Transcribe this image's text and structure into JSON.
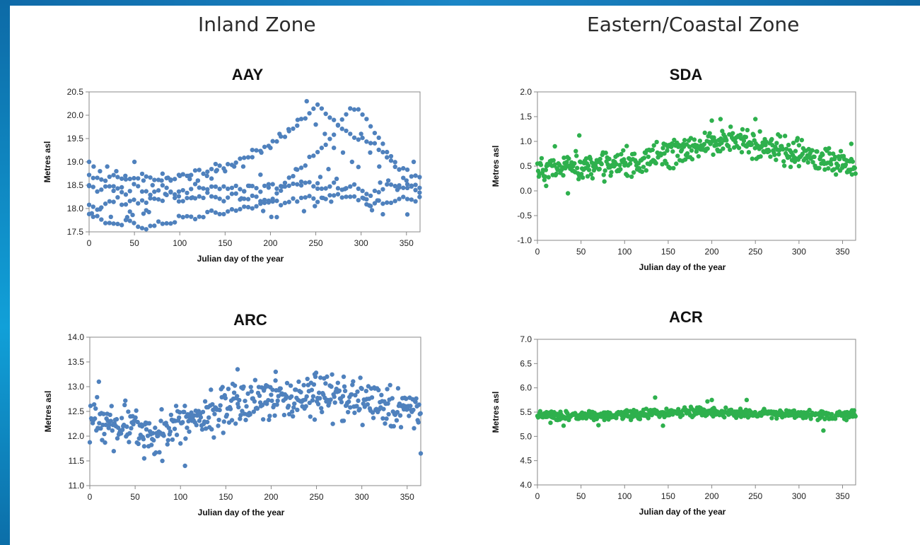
{
  "zones": {
    "inland": "Inland Zone",
    "eastern": "Eastern/Coastal Zone"
  },
  "chart_data": [
    {
      "id": "AAY",
      "type": "scatter",
      "title": "AAY",
      "xlabel": "Julian day of the year",
      "ylabel": "Metres asl",
      "xlim": [
        0,
        365
      ],
      "ylim": [
        17.5,
        20.5
      ],
      "xticks": [
        0,
        50,
        100,
        150,
        200,
        250,
        300,
        350
      ],
      "yticks": [
        "17.5",
        "18.0",
        "18.5",
        "19.0",
        "19.5",
        "20.0",
        "20.5"
      ],
      "color": "#4f81bd",
      "grid": false,
      "series": [
        {
          "x": [
            0,
            10,
            20,
            30,
            40,
            50,
            60,
            70,
            80,
            90,
            100,
            110,
            120,
            130,
            140,
            150,
            160,
            170,
            180,
            190,
            200,
            210,
            220,
            230,
            240,
            250,
            260,
            270,
            280,
            290,
            300,
            310,
            320,
            330,
            340,
            350,
            360
          ],
          "y": [
            18.5,
            18.4,
            18.5,
            18.4,
            18.3,
            18.5,
            18.4,
            18.3,
            18.5,
            18.4,
            18.3,
            18.4,
            18.5,
            18.4,
            18.5,
            18.4,
            18.5,
            18.4,
            18.5,
            18.4,
            18.5,
            18.4,
            18.5,
            18.5,
            18.6,
            18.5,
            18.4,
            18.5,
            18.4,
            18.5,
            18.4,
            18.3,
            18.4,
            18.5,
            18.4,
            18.4,
            18.5
          ]
        },
        {
          "x": [
            0,
            10,
            20,
            30,
            40,
            50,
            60,
            70,
            80,
            90,
            100,
            110,
            120,
            130,
            140,
            150,
            160,
            170,
            180,
            190,
            200,
            210,
            220,
            230,
            240,
            250,
            260,
            270,
            280,
            290,
            300,
            310,
            320,
            330,
            340,
            350,
            360
          ],
          "y": [
            18.1,
            18.0,
            18.1,
            18.2,
            18.1,
            18.2,
            18.1,
            18.2,
            18.2,
            18.3,
            18.2,
            18.2,
            18.2,
            18.3,
            18.3,
            18.2,
            18.3,
            18.2,
            18.3,
            18.2,
            18.2,
            18.1,
            18.2,
            18.2,
            18.3,
            18.2,
            18.2,
            18.3,
            18.2,
            18.3,
            18.2,
            18.1,
            18.2,
            18.1,
            18.2,
            18.2,
            18.2
          ]
        },
        {
          "x": [
            0,
            10,
            20,
            30,
            40,
            50,
            60,
            70,
            80,
            90,
            100,
            110,
            120,
            130,
            140,
            150,
            160,
            170,
            180,
            190,
            200,
            210,
            220,
            230,
            240,
            250,
            260,
            270,
            280,
            290,
            300,
            310,
            320,
            330,
            340,
            350,
            360
          ],
          "y": [
            18.7,
            18.6,
            18.6,
            18.7,
            18.6,
            18.6,
            18.7,
            18.6,
            18.7,
            18.6,
            18.7,
            18.7,
            18.8,
            18.8,
            18.9,
            18.9,
            19.0,
            19.1,
            19.2,
            19.3,
            19.4,
            19.5,
            19.6,
            19.8,
            20.0,
            20.2,
            20.1,
            19.9,
            19.7,
            19.6,
            19.5,
            19.4,
            19.3,
            19.1,
            18.9,
            18.8,
            18.7
          ]
        },
        {
          "x": [
            0,
            10,
            20,
            30,
            40,
            50,
            60,
            70,
            80,
            90,
            100,
            110,
            120,
            130,
            140,
            150,
            160,
            170,
            180,
            190,
            200,
            210,
            220,
            230,
            240,
            250,
            260,
            270,
            280,
            290,
            300,
            310,
            320,
            330,
            340,
            350,
            360
          ],
          "y": [
            17.9,
            17.8,
            17.7,
            17.6,
            17.7,
            17.7,
            17.6,
            17.6,
            17.7,
            17.7,
            17.8,
            17.8,
            17.8,
            17.9,
            17.9,
            17.9,
            18.0,
            18.0,
            18.0,
            18.1,
            18.2,
            18.4,
            18.6,
            18.8,
            19.0,
            19.2,
            19.4,
            19.6,
            19.9,
            20.2,
            20.1,
            19.8,
            19.5,
            19.2,
            18.9,
            18.6,
            18.4
          ]
        }
      ],
      "scatter_x": [
        0,
        5,
        12,
        20,
        30,
        40,
        50,
        60,
        70,
        80,
        90,
        100,
        110,
        120,
        130,
        140,
        150,
        160,
        170,
        180,
        190,
        200,
        210,
        220,
        230,
        240,
        250,
        260,
        270,
        280,
        290,
        300,
        310,
        320,
        330,
        340,
        350,
        358
      ],
      "scatter_y": [
        19.0,
        18.9,
        18.8,
        18.9,
        18.8,
        18.7,
        19.0,
        18.6,
        18.5,
        18.6,
        18.6,
        18.7,
        18.7,
        18.6,
        18.7,
        18.8,
        18.8,
        18.9,
        18.9,
        19.1,
        19.2,
        19.3,
        19.6,
        19.7,
        19.9,
        20.3,
        19.8,
        19.6,
        19.3,
        19.2,
        19.0,
        19.6,
        19.2,
        18.9,
        18.6,
        18.4,
        18.6,
        19.0
      ]
    },
    {
      "id": "SDA",
      "type": "scatter",
      "title": "SDA",
      "xlabel": "Julian day of the year",
      "ylabel": "Metres asl",
      "xlim": [
        0,
        365
      ],
      "ylim": [
        -1.0,
        2.0
      ],
      "xticks": [
        0,
        50,
        100,
        150,
        200,
        250,
        300,
        350
      ],
      "yticks": [
        "-1.0",
        "-0.5",
        "0.0",
        "0.5",
        "1.0",
        "1.5",
        "2.0"
      ],
      "color": "#2eb04d",
      "grid": false,
      "trend_x": [
        0,
        25,
        50,
        75,
        100,
        125,
        150,
        175,
        200,
        225,
        250,
        275,
        300,
        325,
        350,
        365
      ],
      "trend_y": [
        0.45,
        0.45,
        0.5,
        0.5,
        0.55,
        0.65,
        0.75,
        0.85,
        0.95,
        1.0,
        0.95,
        0.85,
        0.75,
        0.65,
        0.55,
        0.5
      ],
      "spread": 0.3,
      "outliers_x": [
        48,
        20,
        35,
        10,
        200,
        210,
        250,
        300,
        360
      ],
      "outliers_y": [
        1.12,
        0.9,
        -0.05,
        0.1,
        1.42,
        1.45,
        1.45,
        0.5,
        0.95
      ]
    },
    {
      "id": "ARC",
      "type": "scatter",
      "title": "ARC",
      "xlabel": "Julian day of the year",
      "ylabel": "Metres asl",
      "xlim": [
        0,
        365
      ],
      "ylim": [
        11.0,
        14.0
      ],
      "xticks": [
        0,
        50,
        100,
        150,
        200,
        250,
        300,
        350
      ],
      "yticks": [
        "11.0",
        "11.5",
        "12.0",
        "12.5",
        "13.0",
        "13.5",
        "14.0"
      ],
      "color": "#4f81bd",
      "grid": false,
      "trend_x": [
        0,
        25,
        50,
        75,
        100,
        125,
        150,
        175,
        200,
        225,
        250,
        275,
        300,
        325,
        350,
        365
      ],
      "trend_y": [
        12.3,
        12.2,
        12.2,
        12.1,
        12.2,
        12.4,
        12.6,
        12.7,
        12.8,
        12.8,
        12.8,
        12.75,
        12.7,
        12.6,
        12.5,
        12.4
      ],
      "spread": 0.5,
      "outliers_x": [
        10,
        163,
        205,
        248,
        280,
        365,
        80,
        105,
        60
      ],
      "outliers_y": [
        13.1,
        13.35,
        13.3,
        13.25,
        13.2,
        11.65,
        11.5,
        11.4,
        11.55
      ]
    },
    {
      "id": "ACR",
      "type": "scatter",
      "title": "ACR",
      "xlabel": "Julian day of the year",
      "ylabel": "Metres asl",
      "xlim": [
        0,
        365
      ],
      "ylim": [
        4.0,
        7.0
      ],
      "xticks": [
        0,
        50,
        100,
        150,
        200,
        250,
        300,
        350
      ],
      "yticks": [
        "4.0",
        "4.5",
        "5.0",
        "5.5",
        "6.0",
        "6.5",
        "7.0"
      ],
      "color": "#2eb04d",
      "grid": false,
      "trend_x": [
        0,
        50,
        100,
        150,
        200,
        250,
        300,
        350,
        365
      ],
      "trend_y": [
        5.43,
        5.43,
        5.45,
        5.48,
        5.5,
        5.48,
        5.46,
        5.45,
        5.45
      ],
      "spread": 0.1,
      "outliers_x": [
        135,
        195,
        200,
        240,
        328,
        144,
        30,
        70,
        15
      ],
      "outliers_y": [
        5.8,
        5.72,
        5.75,
        5.75,
        5.12,
        5.22,
        5.22,
        5.23,
        5.28
      ]
    }
  ]
}
